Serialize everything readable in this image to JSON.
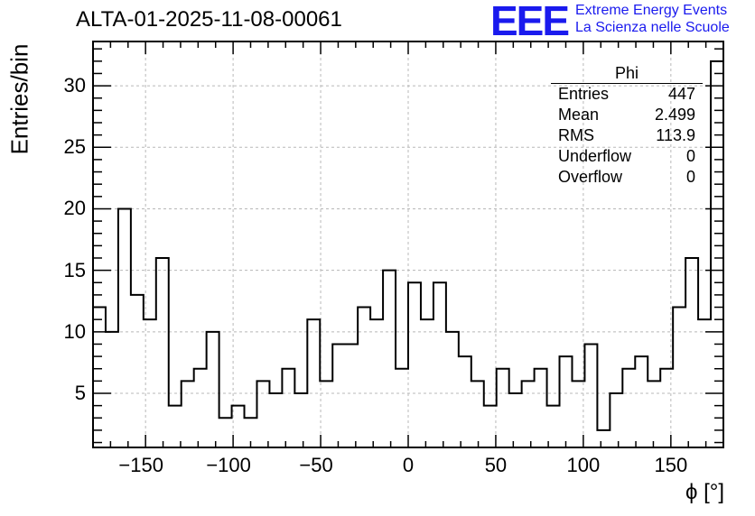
{
  "header": {
    "title": "ALTA-01-2025-11-08-00061",
    "logo": "EEE",
    "logo_line1": "Extreme Energy Events",
    "logo_line2": "La Scienza nelle Scuole"
  },
  "stats": {
    "name": "Phi",
    "rows": [
      {
        "label": "Entries",
        "value": "447"
      },
      {
        "label": "Mean",
        "value": "2.499"
      },
      {
        "label": "RMS",
        "value": "113.9"
      },
      {
        "label": "Underflow",
        "value": "0"
      },
      {
        "label": "Overflow",
        "value": "0"
      }
    ]
  },
  "chart_data": {
    "type": "bar",
    "style": "step-histogram",
    "title": "ALTA-01-2025-11-08-00061",
    "xlabel": "ϕ [°]",
    "ylabel": "Entries/bin",
    "xlim": [
      -180,
      180
    ],
    "ylim": [
      0.6,
      33.6
    ],
    "bin_width": 7.2,
    "x_ticks": [
      -150,
      -100,
      -50,
      0,
      50,
      100,
      150
    ],
    "x_tick_labels": [
      "−150",
      "−100",
      "−50",
      "0",
      "50",
      "100",
      "150"
    ],
    "y_ticks": [
      5,
      10,
      15,
      20,
      25,
      30
    ],
    "grid": true,
    "values": [
      12,
      10,
      20,
      13,
      11,
      16,
      4,
      6,
      7,
      10,
      3,
      4,
      3,
      6,
      5,
      7,
      5,
      11,
      6,
      9,
      9,
      12,
      11,
      15,
      7,
      14,
      11,
      14,
      10,
      8,
      6,
      4,
      7,
      5,
      6,
      7,
      4,
      8,
      6,
      9,
      2,
      5,
      7,
      8,
      6,
      7,
      12,
      16,
      11,
      32
    ]
  }
}
